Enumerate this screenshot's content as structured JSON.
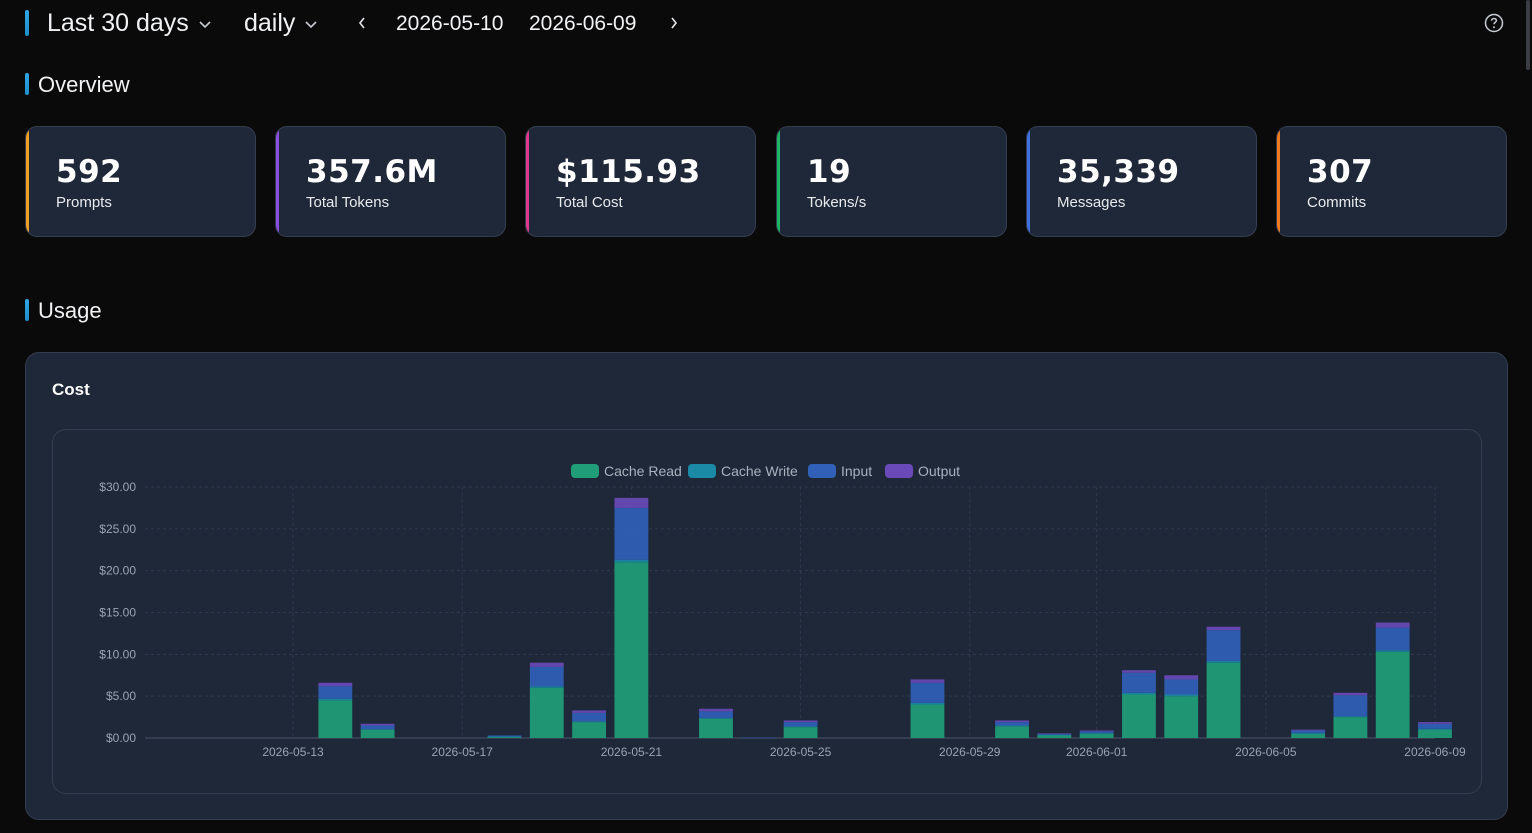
{
  "header": {
    "range_label": "Last 30 days",
    "interval_label": "daily",
    "start_date": "2026-05-10",
    "end_date": "2026-06-09"
  },
  "overview": {
    "title": "Overview",
    "cards": [
      {
        "value": "592",
        "label": "Prompts",
        "color": "#f0a020"
      },
      {
        "value": "357.6M",
        "label": "Total Tokens",
        "color": "#8a4fe0"
      },
      {
        "value": "$115.93",
        "label": "Total Cost",
        "color": "#e0388a"
      },
      {
        "value": "19",
        "label": "Tokens/s",
        "color": "#1fb566"
      },
      {
        "value": "35,339",
        "label": "Messages",
        "color": "#3f72e0"
      },
      {
        "value": "307",
        "label": "Commits",
        "color": "#f07a20"
      }
    ]
  },
  "usage": {
    "title": "Usage",
    "panel_title": "Cost"
  },
  "chart_data": {
    "type": "bar",
    "stacked": true,
    "categories": [
      "2026-05-10",
      "2026-05-11",
      "2026-05-12",
      "2026-05-13",
      "2026-05-14",
      "2026-05-15",
      "2026-05-16",
      "2026-05-17",
      "2026-05-18",
      "2026-05-19",
      "2026-05-20",
      "2026-05-21",
      "2026-05-22",
      "2026-05-23",
      "2026-05-24",
      "2026-05-25",
      "2026-05-26",
      "2026-05-27",
      "2026-05-28",
      "2026-05-29",
      "2026-05-30",
      "2026-05-31",
      "2026-06-01",
      "2026-06-02",
      "2026-06-03",
      "2026-06-04",
      "2026-06-05",
      "2026-06-06",
      "2026-06-07",
      "2026-06-08",
      "2026-06-09"
    ],
    "tick_labels": [
      "2026-05-13",
      "2026-05-17",
      "2026-05-21",
      "2026-05-25",
      "2026-05-29",
      "2026-06-01",
      "2026-06-05",
      "2026-06-09"
    ],
    "series": [
      {
        "name": "Cache Read",
        "color": "#1f9e78",
        "values": [
          0,
          0,
          0,
          0,
          4.5,
          1.0,
          0,
          0,
          0.1,
          6.0,
          1.9,
          21.0,
          0,
          2.3,
          0,
          1.3,
          0,
          0,
          4.0,
          0,
          1.4,
          0.3,
          0.5,
          5.2,
          5.0,
          9.0,
          0,
          0.5,
          2.5,
          10.3,
          1.0
        ]
      },
      {
        "name": "Cache Write",
        "color": "#1a8aa6",
        "values": [
          0,
          0,
          0,
          0,
          0.2,
          0.05,
          0,
          0,
          0.1,
          0.2,
          0.1,
          0.3,
          0,
          0.1,
          0,
          0.1,
          0,
          0,
          0.2,
          0,
          0.1,
          0.1,
          0.1,
          0.2,
          0.2,
          0.2,
          0,
          0.1,
          0.1,
          0.2,
          0.1
        ]
      },
      {
        "name": "Input",
        "color": "#3160b8",
        "values": [
          0,
          0,
          0,
          0,
          1.5,
          0.45,
          0,
          0,
          0.1,
          2.3,
          1.0,
          6.2,
          0,
          0.8,
          0.05,
          0.5,
          0,
          0,
          2.4,
          0,
          0.4,
          0.1,
          0.2,
          2.4,
          1.8,
          3.7,
          0,
          0.3,
          2.5,
          2.7,
          0.6
        ]
      },
      {
        "name": "Output",
        "color": "#6a4ab8",
        "values": [
          0,
          0,
          0,
          0,
          0.4,
          0.2,
          0,
          0,
          0,
          0.5,
          0.3,
          1.2,
          0,
          0.3,
          0,
          0.2,
          0,
          0,
          0.4,
          0,
          0.2,
          0.05,
          0.1,
          0.3,
          0.5,
          0.4,
          0,
          0.1,
          0.3,
          0.6,
          0.2
        ]
      }
    ],
    "ylim": [
      0,
      30
    ],
    "yticks": [
      "$0.00",
      "$5.00",
      "$10.00",
      "$15.00",
      "$20.00",
      "$25.00",
      "$30.00"
    ],
    "ytick_values": [
      0,
      5,
      10,
      15,
      20,
      25,
      30
    ],
    "grid": true,
    "legend": "top-center"
  }
}
